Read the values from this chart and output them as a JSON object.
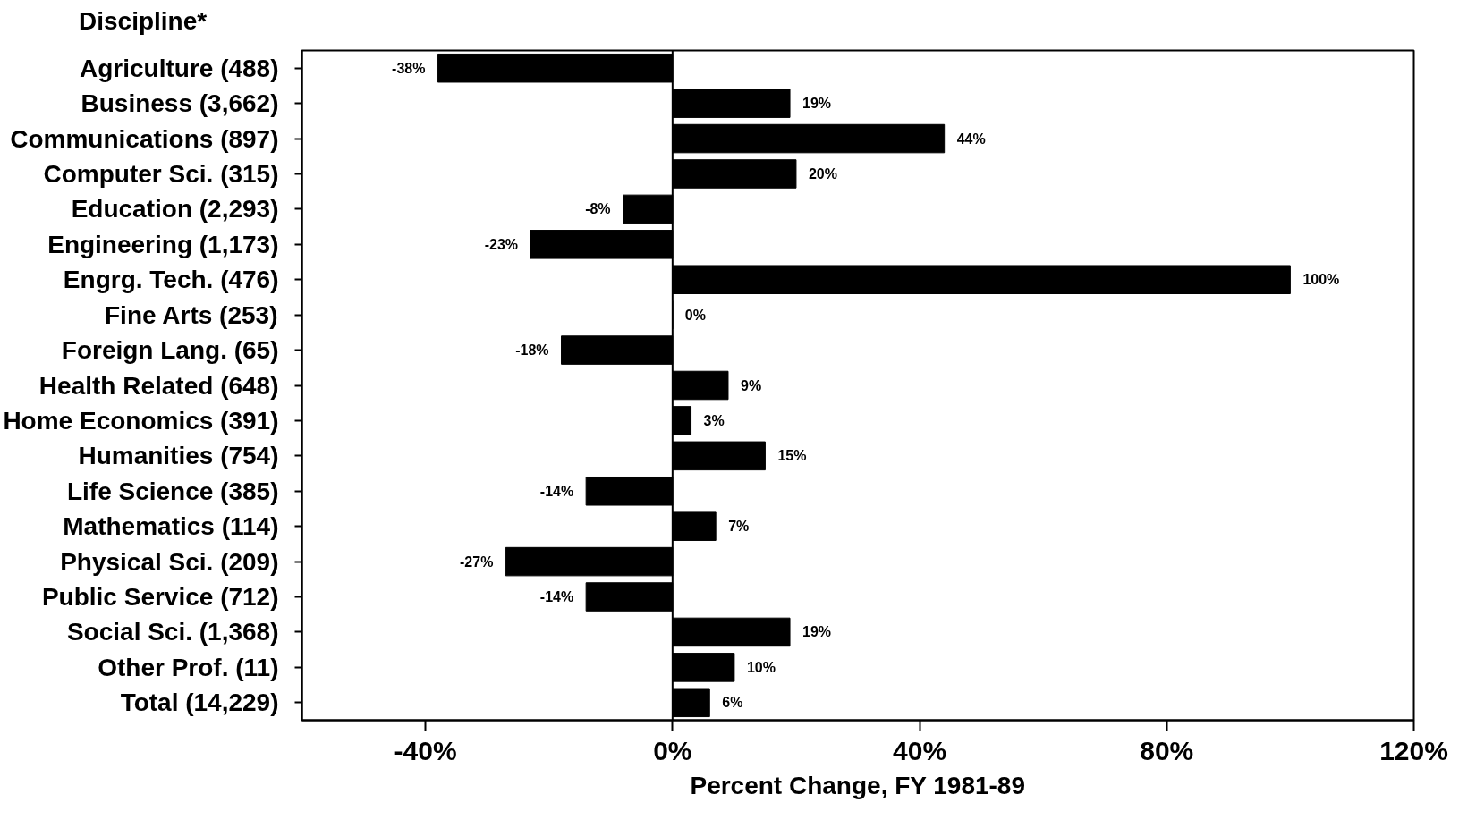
{
  "chart_data": {
    "type": "bar",
    "orientation": "horizontal",
    "ylabel": "Discipline*",
    "xlabel": "Percent Change, FY 1981-89",
    "categories": [
      "Agriculture (488)",
      "Business (3,662)",
      "Communications (897)",
      "Computer Sci. (315)",
      "Education (2,293)",
      "Engineering (1,173)",
      "Engrg. Tech. (476)",
      "Fine Arts (253)",
      "Foreign Lang. (65)",
      "Health Related (648)",
      "Home Economics (391)",
      "Humanities (754)",
      "Life Science (385)",
      "Mathematics (114)",
      "Physical Sci. (209)",
      "Public Service (712)",
      "Social Sci. (1,368)",
      "Other Prof. (11)",
      "Total (14,229)"
    ],
    "values": [
      -38,
      19,
      44,
      20,
      -8,
      -23,
      100,
      0,
      -18,
      9,
      3,
      15,
      -14,
      7,
      -27,
      -14,
      19,
      10,
      6
    ],
    "value_labels": [
      "-38%",
      "19%",
      "44%",
      "20%",
      "-8%",
      "-23%",
      "100%",
      "0%",
      "-18%",
      "9%",
      "3%",
      "15%",
      "-14%",
      "7%",
      "-27%",
      "-14%",
      "19%",
      "10%",
      "6%"
    ],
    "color": "#000000",
    "xlim": [
      -60,
      120
    ],
    "xticks": [
      {
        "value": -40,
        "label": "-40%"
      },
      {
        "value": 0,
        "label": "0%"
      },
      {
        "value": 40,
        "label": "40%"
      },
      {
        "value": 80,
        "label": "80%"
      },
      {
        "value": 120,
        "label": "120%"
      }
    ],
    "ref_lines": [
      {
        "axis": "x",
        "value": 0,
        "label": null
      }
    ],
    "grid": false
  }
}
